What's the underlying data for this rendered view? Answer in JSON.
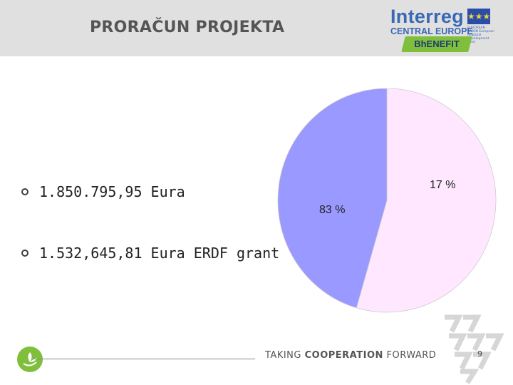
{
  "header": {
    "title": "PRORAČUN PROJEKTA",
    "logo_word": "Interreg",
    "logo_sub": "CENTRAL EUROPE",
    "logo_tiny": "EUROPEAN UNION European Regional Development Fund",
    "badge": "BhENEFIT"
  },
  "bullets": [
    {
      "text": "1.850.795,95 Eura"
    },
    {
      "text": "1.532,645,81 Eura ERDF grant"
    }
  ],
  "chart_data": {
    "type": "pie",
    "slices": [
      {
        "label": "17 %",
        "value": 17,
        "color": "#9999ff"
      },
      {
        "label": "83 %",
        "value": 83,
        "color": "#ffe8ff"
      }
    ]
  },
  "footer": {
    "text_a": "TAKING ",
    "text_b": "COOPERATION",
    "text_c": " FORWARD",
    "page": "9"
  }
}
